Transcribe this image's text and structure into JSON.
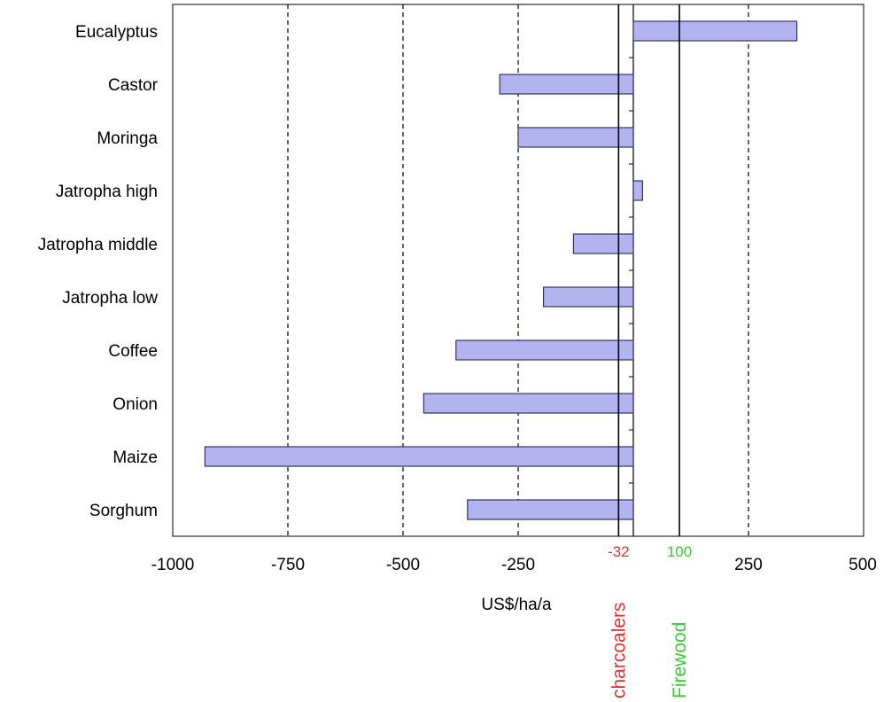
{
  "chart_data": {
    "type": "bar",
    "orientation": "horizontal",
    "categories": [
      "Eucalyptus",
      "Castor",
      "Moringa",
      "Jatropha high",
      "Jatropha middle",
      "Jatropha low",
      "Coffee",
      "Onion",
      "Maize",
      "Sorghum"
    ],
    "values": [
      355,
      -290,
      -250,
      20,
      -130,
      -195,
      -385,
      -455,
      -930,
      -360
    ],
    "xlabel": "US$/ha/a",
    "xlim": [
      -1000,
      500
    ],
    "xticks": [
      -1000,
      -750,
      -500,
      -250,
      0,
      250,
      500
    ],
    "xtick_labels": [
      "-1000",
      "-750",
      "-500",
      "-250",
      "",
      "250",
      "500"
    ],
    "grid": "vertical dashed lines",
    "bar_color": "#b3b3f0",
    "bar_edge_color": "#333366",
    "reference_lines": [
      {
        "value": -32,
        "value_label": "-32",
        "name": "charcoalers",
        "color": "#e03030"
      },
      {
        "value": 100,
        "value_label": "100",
        "name": "Firewood",
        "color": "#33cc33"
      }
    ]
  }
}
